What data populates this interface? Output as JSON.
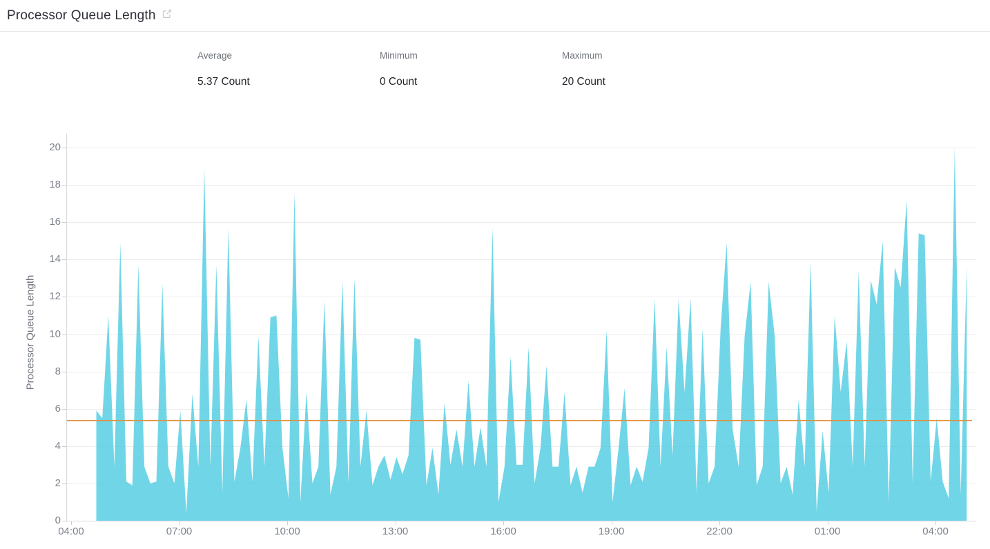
{
  "header": {
    "title": "Processor Queue Length"
  },
  "stats": [
    {
      "label": "Average",
      "value": "5.37 Count"
    },
    {
      "label": "Minimum",
      "value": "0 Count"
    },
    {
      "label": "Maximum",
      "value": "20 Count"
    }
  ],
  "chart_data": {
    "type": "area",
    "title": "Processor Queue Length",
    "xlabel": "",
    "ylabel": "Processor Queue Length",
    "unit": "Count",
    "ylim": [
      0,
      20
    ],
    "yticks": [
      0,
      2,
      4,
      6,
      8,
      10,
      12,
      14,
      16,
      18,
      20
    ],
    "xticks": [
      {
        "label": "04:00",
        "hour": 0
      },
      {
        "label": "07:00",
        "hour": 3
      },
      {
        "label": "10:00",
        "hour": 6
      },
      {
        "label": "13:00",
        "hour": 9
      },
      {
        "label": "16:00",
        "hour": 12
      },
      {
        "label": "19:00",
        "hour": 15
      },
      {
        "label": "22:00",
        "hour": 18
      },
      {
        "label": "01:00",
        "hour": 21
      },
      {
        "label": "04:00",
        "hour": 24
      }
    ],
    "grid": "horizontal",
    "legend": "none",
    "time_span_hours": 24.87,
    "average_line": {
      "value": 5.37
    },
    "stats": {
      "average": 5.37,
      "minimum": 0,
      "maximum": 20
    },
    "colors": {
      "area_fill": "#51cde2",
      "area_fill_opacity": 0.82,
      "average_line": "#e08f3c",
      "grid": "#ececec",
      "axis": "#d9d9d9",
      "tick": "#cfcfcf",
      "tick_label": "#7c818a"
    },
    "series": [
      {
        "name": "Processor Queue Length",
        "start_hour_offset": 0.7,
        "step_minutes": 10,
        "values": [
          5.9,
          5.5,
          11,
          2.9,
          14.9,
          2.1,
          1.9,
          13.7,
          2.9,
          2,
          2.1,
          12.7,
          2.9,
          2,
          5.9,
          0.4,
          6.8,
          2.9,
          18.9,
          2.9,
          13.7,
          1.5,
          15.7,
          2.1,
          3.9,
          6.5,
          2.1,
          9.9,
          2.9,
          10.9,
          11,
          3.9,
          1.2,
          17.6,
          1,
          6.9,
          2,
          2.9,
          11.8,
          1.4,
          2.9,
          12.9,
          2,
          13,
          2.9,
          5.9,
          1.9,
          2.9,
          3.5,
          2.2,
          3.4,
          2.5,
          3.5,
          9.8,
          9.7,
          1.9,
          3.9,
          1.4,
          6.3,
          3,
          4.9,
          2.9,
          7.5,
          2.9,
          5,
          2.9,
          15.7,
          1,
          2.9,
          8.8,
          3,
          3,
          9.3,
          2,
          3.9,
          8.3,
          2.9,
          2.9,
          6.9,
          1.9,
          2.9,
          1.5,
          2.9,
          2.9,
          3.9,
          10.2,
          1,
          3.9,
          7.1,
          1.9,
          2.9,
          2.1,
          3.9,
          11.9,
          2.9,
          9.3,
          3.5,
          11.9,
          6.9,
          11.9,
          1.5,
          10.3,
          2,
          2.9,
          10.3,
          14.9,
          4.9,
          2.9,
          9.9,
          12.8,
          1.9,
          2.9,
          12.8,
          9.9,
          2,
          2.9,
          1.4,
          6.5,
          2.9,
          13.9,
          0.5,
          4.8,
          1.5,
          11,
          6.9,
          9.6,
          2.9,
          13.4,
          2.9,
          12.9,
          11.6,
          15,
          1,
          13.6,
          12.5,
          17.2,
          2,
          15.4,
          15.3,
          2.1,
          5.5,
          2.1,
          1.2,
          20,
          1.4,
          13.7
        ]
      }
    ]
  }
}
